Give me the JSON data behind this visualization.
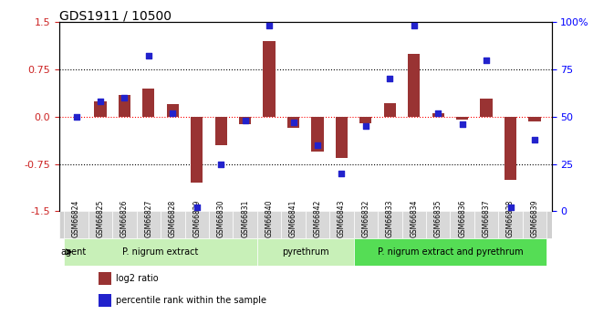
{
  "title": "GDS1911 / 10500",
  "samples": [
    "GSM66824",
    "GSM66825",
    "GSM66826",
    "GSM66827",
    "GSM66828",
    "GSM66829",
    "GSM66830",
    "GSM66831",
    "GSM66840",
    "GSM66841",
    "GSM66842",
    "GSM66843",
    "GSM66832",
    "GSM66833",
    "GSM66834",
    "GSM66835",
    "GSM66836",
    "GSM66837",
    "GSM66838",
    "GSM66839"
  ],
  "log2_ratio": [
    0.0,
    0.25,
    0.35,
    0.45,
    0.2,
    -1.05,
    -0.45,
    -0.12,
    1.2,
    -0.18,
    -0.55,
    -0.65,
    -0.1,
    0.22,
    1.0,
    0.05,
    -0.04,
    0.28,
    -1.0,
    -0.08
  ],
  "percentile": [
    50,
    58,
    60,
    82,
    52,
    2,
    25,
    48,
    98,
    47,
    35,
    20,
    45,
    70,
    98,
    52,
    46,
    80,
    2,
    38
  ],
  "groups": [
    {
      "label": "P. nigrum extract",
      "start": 0,
      "end": 8,
      "color": "#aee8a0"
    },
    {
      "label": "pyrethrum",
      "start": 8,
      "end": 12,
      "color": "#aee8a0"
    },
    {
      "label": "P. nigrum extract and pyrethrum",
      "start": 12,
      "end": 20,
      "color": "#55cc55"
    }
  ],
  "group_colors": [
    "#c8f0b8",
    "#c8f0b8",
    "#55cc55"
  ],
  "bar_color": "#993333",
  "dot_color": "#2222cc",
  "ylim_left": [
    -1.5,
    1.5
  ],
  "ylim_right": [
    0,
    100
  ],
  "yticks_left": [
    -1.5,
    -0.75,
    0.0,
    0.75,
    1.5
  ],
  "yticks_right": [
    0,
    25,
    50,
    75,
    100
  ],
  "ytick_labels_right": [
    "0",
    "25",
    "50",
    "75",
    "100%"
  ],
  "hlines": [
    0.75,
    -0.75
  ],
  "red_hline": 0.0,
  "xlabel_rotation": -90
}
